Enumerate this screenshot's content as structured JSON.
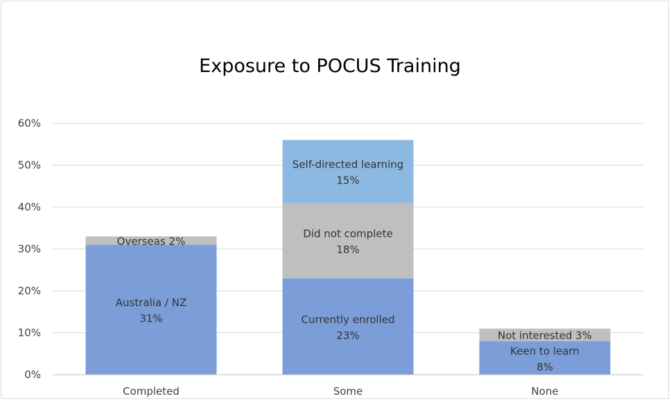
{
  "chart_data": {
    "type": "bar",
    "stacked": true,
    "title": "Exposure to POCUS Training",
    "xlabel": "",
    "ylabel": "",
    "ylim": [
      0,
      60
    ],
    "y_ticks": [
      "0%",
      "10%",
      "20%",
      "30%",
      "40%",
      "50%",
      "60%"
    ],
    "y_tick_values": [
      0,
      10,
      20,
      30,
      40,
      50,
      60
    ],
    "grid": true,
    "legend": "none",
    "categories": [
      "Completed",
      "Some",
      "None"
    ],
    "bars": [
      {
        "category": "Completed",
        "segments": [
          {
            "name": "Australia / NZ",
            "value": 31,
            "label": "31%",
            "color": "#7b9ed8"
          },
          {
            "name": "Overseas 2%",
            "value": 2,
            "label": "",
            "color": "#bfbfbf",
            "inline": true
          }
        ]
      },
      {
        "category": "Some",
        "segments": [
          {
            "name": "Currently enrolled",
            "value": 23,
            "label": "23%",
            "color": "#7b9ed8"
          },
          {
            "name": "Did not complete",
            "value": 18,
            "label": "18%",
            "color": "#bfbfbf"
          },
          {
            "name": "Self-directed learning",
            "value": 15,
            "label": "15%",
            "color": "#8cb9e2"
          }
        ]
      },
      {
        "category": "None",
        "segments": [
          {
            "name": "Keen to learn",
            "value": 8,
            "label": "8%",
            "color": "#7b9ed8"
          },
          {
            "name": "Not interested 3%",
            "value": 3,
            "label": "",
            "color": "#bfbfbf",
            "inline": true
          }
        ]
      }
    ],
    "colors": {
      "axis": "#bfbfbf",
      "grid": "#d9d9d9"
    }
  }
}
